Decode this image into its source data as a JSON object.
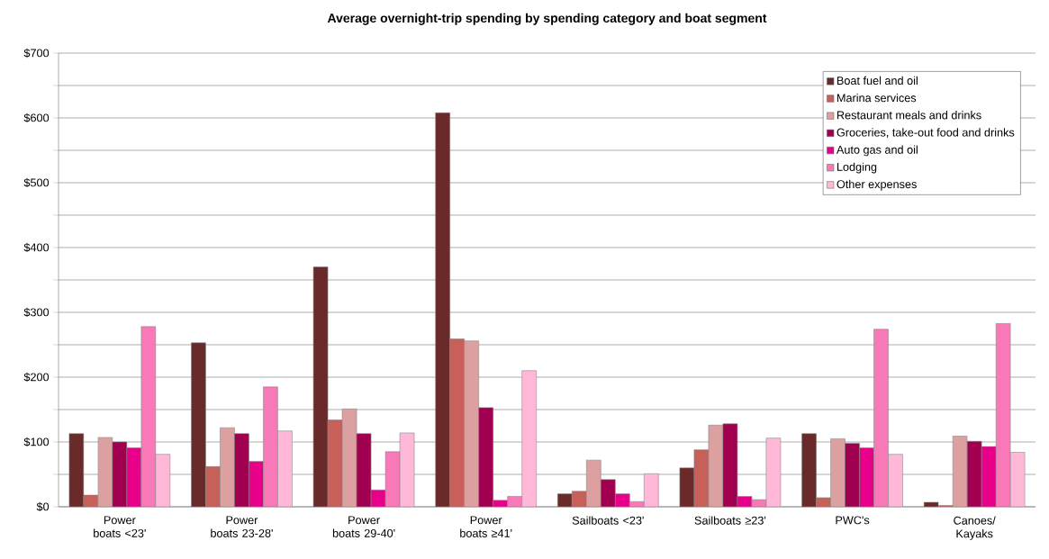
{
  "chart_data": {
    "type": "bar",
    "title": "Average overnight-trip spending by spending category and boat segment",
    "categories": [
      "Power boats <23'",
      "Power boats 23-28'",
      "Power boats 29-40'",
      "Power boats ≥41'",
      "Sailboats <23'",
      "Sailboats ≥23'",
      "PWC's",
      "Canoes/ Kayaks"
    ],
    "series": [
      {
        "name": "Boat fuel and oil",
        "color": "#6b2a2a",
        "values": [
          113,
          253,
          370,
          608,
          20,
          60,
          113,
          7
        ]
      },
      {
        "name": "Marina services",
        "color": "#c8605a",
        "values": [
          18,
          62,
          134,
          259,
          24,
          88,
          14,
          2
        ]
      },
      {
        "name": "Restaurant meals and drinks",
        "color": "#dda0a0",
        "values": [
          107,
          122,
          151,
          256,
          72,
          126,
          105,
          109
        ]
      },
      {
        "name": "Groceries, take-out food and drinks",
        "color": "#a0004f",
        "values": [
          100,
          113,
          113,
          153,
          42,
          128,
          98,
          101
        ]
      },
      {
        "name": "Auto gas and oil",
        "color": "#e8008a",
        "values": [
          91,
          70,
          26,
          10,
          20,
          16,
          91,
          93
        ]
      },
      {
        "name": "Lodging",
        "color": "#f878b8",
        "values": [
          278,
          185,
          85,
          16,
          8,
          11,
          274,
          283
        ]
      },
      {
        "name": "Other expenses",
        "color": "#ffb8d8",
        "values": [
          81,
          117,
          114,
          210,
          51,
          106,
          81,
          84
        ]
      }
    ],
    "ylim": [
      0,
      700
    ],
    "yticks": [
      {
        "value": 0,
        "label": "$0"
      },
      {
        "value": 50,
        "label": null
      },
      {
        "value": 100,
        "label": "$100"
      },
      {
        "value": 150,
        "label": null
      },
      {
        "value": 200,
        "label": "$200"
      },
      {
        "value": 250,
        "label": null
      },
      {
        "value": 300,
        "label": "$300"
      },
      {
        "value": 350,
        "label": null
      },
      {
        "value": 400,
        "label": "$400"
      },
      {
        "value": 450,
        "label": null
      },
      {
        "value": 500,
        "label": "$500"
      },
      {
        "value": 550,
        "label": null
      },
      {
        "value": 600,
        "label": "$600"
      },
      {
        "value": 650,
        "label": null
      },
      {
        "value": 700,
        "label": "$700"
      }
    ],
    "grid": "y",
    "legend": "top right"
  }
}
